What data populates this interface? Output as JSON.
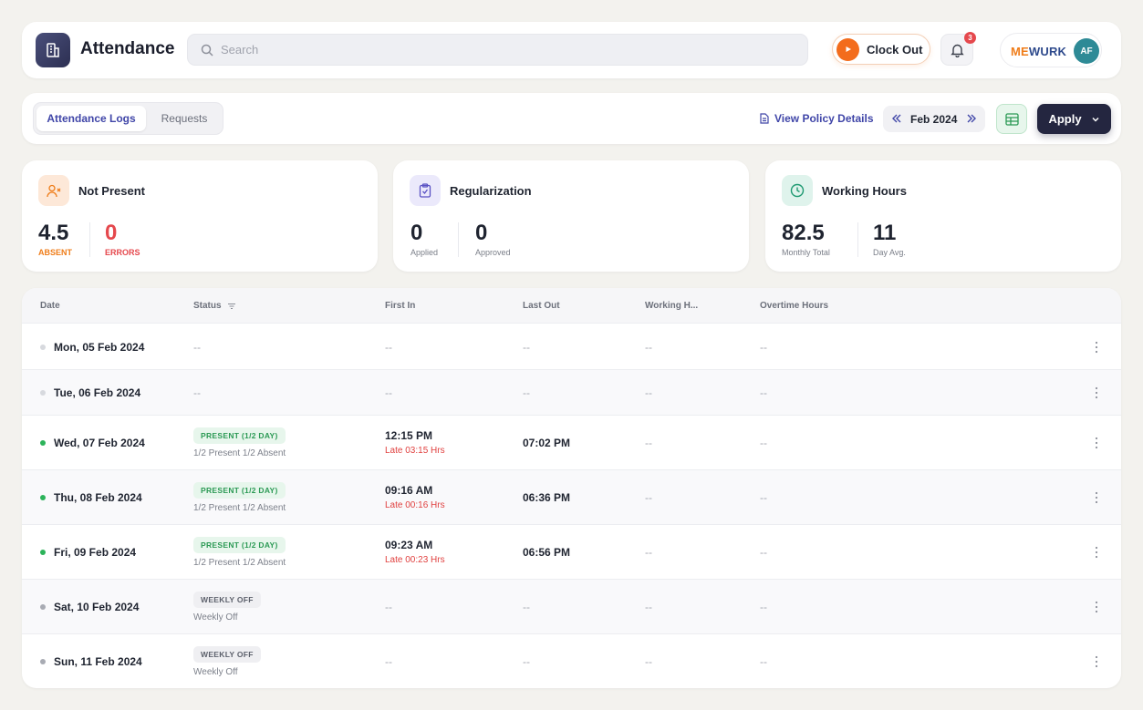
{
  "header": {
    "title": "Attendance",
    "search_placeholder": "Search",
    "clock_out_label": "Clock Out",
    "notification_count": "3",
    "brand_me": "ME",
    "brand_wurk": "WURK",
    "avatar_initials": "AF"
  },
  "toolbar": {
    "tabs": [
      {
        "label": "Attendance Logs",
        "active": true
      },
      {
        "label": "Requests",
        "active": false
      }
    ],
    "policy_link": "View Policy Details",
    "month": "Feb 2024",
    "apply_label": "Apply"
  },
  "stats": {
    "not_present": {
      "title": "Not Present",
      "absent_value": "4.5",
      "absent_label": "ABSENT",
      "errors_value": "0",
      "errors_label": "ERRORS"
    },
    "regularization": {
      "title": "Regularization",
      "applied_value": "0",
      "applied_label": "Applied",
      "approved_value": "0",
      "approved_label": "Approved"
    },
    "working_hours": {
      "title": "Working Hours",
      "monthly_value": "82.5",
      "monthly_label": "Monthly Total",
      "avg_value": "11",
      "avg_label": "Day Avg."
    }
  },
  "table": {
    "columns": [
      "Date",
      "Status",
      "First In",
      "Last Out",
      "Working H...",
      "Overtime Hours"
    ],
    "rows": [
      {
        "date": "Mon, 05 Feb 2024",
        "status": "--",
        "first_in": "--",
        "last_out": "--",
        "working": "--",
        "overtime": "--"
      },
      {
        "date": "Tue, 06 Feb 2024",
        "status": "--",
        "first_in": "--",
        "last_out": "--",
        "working": "--",
        "overtime": "--"
      },
      {
        "date": "Wed, 07 Feb 2024",
        "status_badge": "PRESENT (1/2 DAY)",
        "status_sub": "1/2 Present 1/2 Absent",
        "first_in": "12:15 PM",
        "late": "Late 03:15 Hrs",
        "last_out": "07:02 PM",
        "working": "--",
        "overtime": "--"
      },
      {
        "date": "Thu, 08 Feb 2024",
        "status_badge": "PRESENT (1/2 DAY)",
        "status_sub": "1/2 Present 1/2 Absent",
        "first_in": "09:16 AM",
        "late": "Late 00:16 Hrs",
        "last_out": "06:36 PM",
        "working": "--",
        "overtime": "--"
      },
      {
        "date": "Fri, 09 Feb 2024",
        "status_badge": "PRESENT (1/2 DAY)",
        "status_sub": "1/2 Present 1/2 Absent",
        "first_in": "09:23 AM",
        "late": "Late 00:23 Hrs",
        "last_out": "06:56 PM",
        "working": "--",
        "overtime": "--"
      },
      {
        "date": "Sat, 10 Feb 2024",
        "status_badge": "WEEKLY OFF",
        "status_sub": "Weekly Off",
        "first_in": "--",
        "last_out": "--",
        "working": "--",
        "overtime": "--"
      },
      {
        "date": "Sun, 11 Feb 2024",
        "status_badge": "WEEKLY OFF",
        "status_sub": "Weekly Off",
        "first_in": "--",
        "last_out": "--",
        "working": "--",
        "overtime": "--"
      }
    ]
  },
  "colors": {
    "accent": "#4046a8",
    "clock_out": "#f36c1c",
    "absent": "#ef7d1a",
    "errors": "#e5484d",
    "present": "#2c9a55",
    "late": "#e0403f",
    "apply_bg": "#242640"
  }
}
